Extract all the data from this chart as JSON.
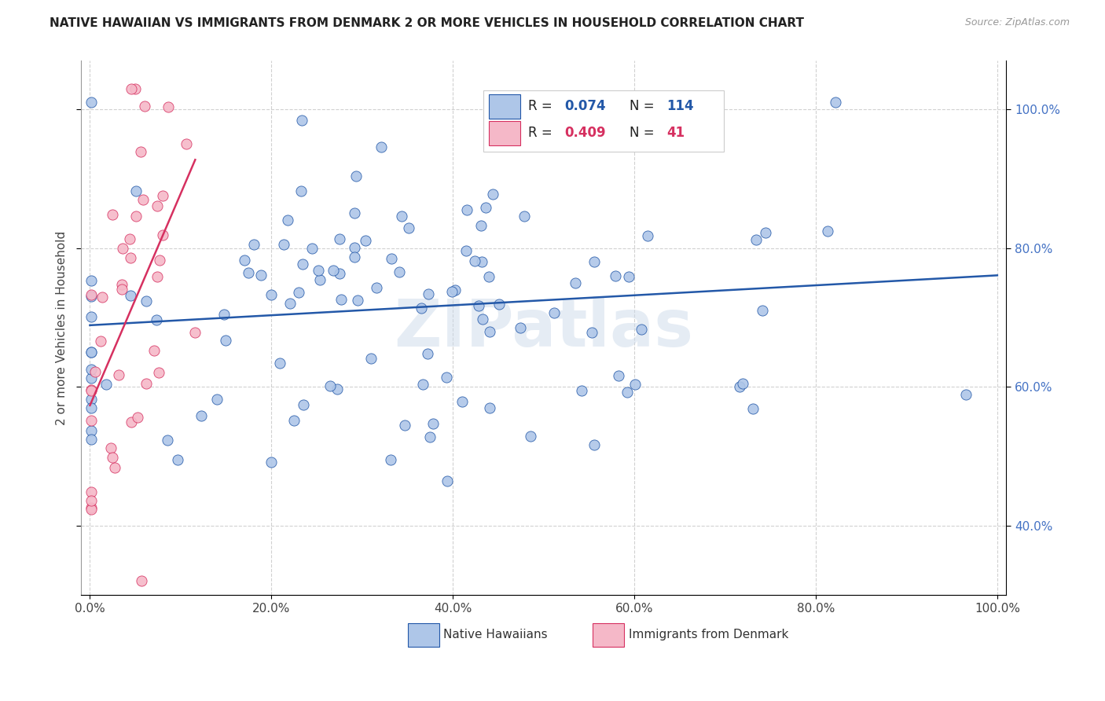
{
  "title": "NATIVE HAWAIIAN VS IMMIGRANTS FROM DENMARK 2 OR MORE VEHICLES IN HOUSEHOLD CORRELATION CHART",
  "source": "Source: ZipAtlas.com",
  "ylabel": "2 or more Vehicles in Household",
  "legend_label1": "Native Hawaiians",
  "legend_label2": "Immigrants from Denmark",
  "r1": 0.074,
  "n1": 114,
  "r2": 0.409,
  "n2": 41,
  "color1": "#aec6e8",
  "color2": "#f5b8c8",
  "line_color1": "#2358a8",
  "line_color2": "#d63060",
  "watermark": "ZIPatlas",
  "xlim": [
    -0.01,
    1.01
  ],
  "ylim": [
    0.3,
    1.07
  ],
  "y_ticks": [
    0.4,
    0.6,
    0.8,
    1.0
  ],
  "x_ticks": [
    0.0,
    0.2,
    0.4,
    0.6,
    0.8,
    1.0
  ],
  "background_color": "#ffffff",
  "grid_color": "#cccccc",
  "title_color": "#222222",
  "source_color": "#999999",
  "right_tick_color": "#4472c4",
  "legend_box_color": "#ffffff",
  "legend_border_color": "#cccccc"
}
